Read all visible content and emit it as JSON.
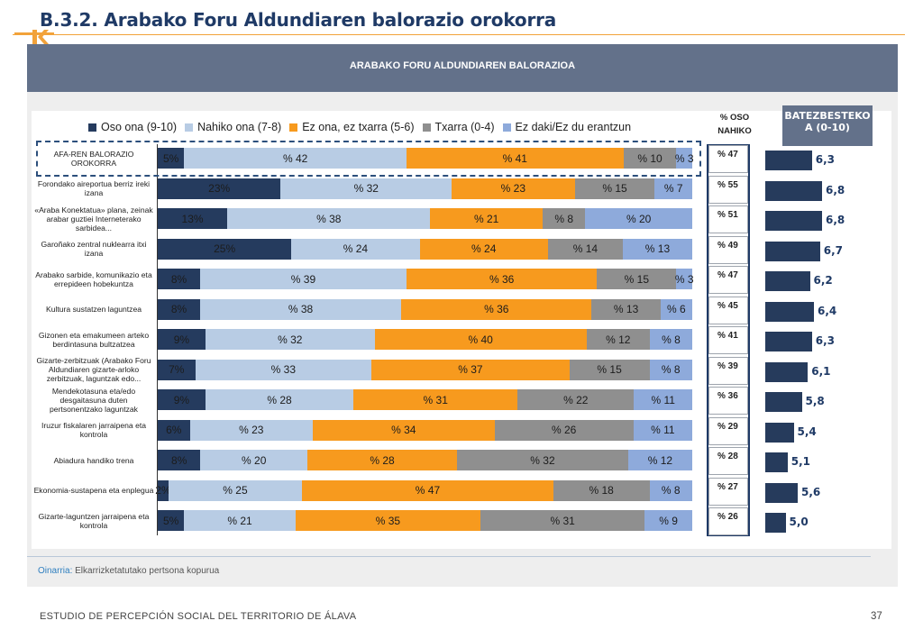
{
  "page": {
    "title": "B.3.2. Arabako Foru Aldundiaren balorazio orokorra",
    "section_header": "ARABAKO FORU ALDUNDIAREN BALORAZIOA",
    "source_label": "Oinarria:",
    "source_text": "Elkarrizketatutako pertsona kopurua",
    "footer": "ESTUDIO DE PERCEPCIÓN SOCIAL DEL TERRITORIO DE ÁLAVA",
    "page_number": "37"
  },
  "colors": {
    "oso_ona": "#253b5e",
    "nahiko_ona": "#b8cce4",
    "ez_ona": "#f79a1e",
    "txarra": "#8f8f8f",
    "ez_daki": "#8eaadb",
    "accent": "#f2a23a",
    "header_band": "#63718a",
    "score_bar": "#263b5c"
  },
  "oso_header": "% OSO\nNAHIKO",
  "batezbesteko_header": "BATEZBESTEKO\nA (0-10)",
  "chart_data": {
    "type": "bar",
    "orientation": "horizontal",
    "stacked": true,
    "categories": [
      "AFA-REN BALORAZIO OROKORRA",
      "Forondako aireportua berriz ireki izana",
      "«Araba Konektatua» plana, zeinak arabar guztiei Interneterako sarbidea...",
      "Garoñako zentral nuklearra itxi izana",
      "Arabako sarbide, komunikazio eta errepideen hobekuntza",
      "Kultura sustatzen laguntzea",
      "Gizonen eta emakumeen arteko berdintasuna bultzatzea",
      "Gizarte-zerbitzuak (Arabako Foru Aldundiaren gizarte-arloko zerbitzuak, laguntzak edo...",
      "Mendekotasuna eta/edo desgaitasuna duten pertsonentzako laguntzak",
      "Iruzur fiskalaren jarraipena eta kontrola",
      "Abiadura handiko trena",
      "Ekonomia-sustapena eta enplegua",
      "Gizarte-laguntzen jarraipena eta kontrola"
    ],
    "series": [
      {
        "name": "Oso ona (9-10)",
        "color": "#253b5e",
        "values": [
          5,
          23,
          13,
          25,
          8,
          8,
          9,
          7,
          9,
          6,
          8,
          2,
          5
        ],
        "labels": [
          "5%",
          "23%",
          "13%",
          "25%",
          "8%",
          "8%",
          "9%",
          "7%",
          "9%",
          "6%",
          "8%",
          "2%",
          "5%"
        ]
      },
      {
        "name": "Nahiko ona (7-8)",
        "color": "#b8cce4",
        "values": [
          42,
          32,
          38,
          24,
          39,
          38,
          32,
          33,
          28,
          23,
          20,
          25,
          21
        ],
        "labels": [
          "% 42",
          "% 32",
          "% 38",
          "% 24",
          "% 39",
          "% 38",
          "% 32",
          "% 33",
          "% 28",
          "% 23",
          "% 20",
          "% 25",
          "% 21"
        ]
      },
      {
        "name": "Ez ona, ez txarra (5-6)",
        "color": "#f79a1e",
        "values": [
          41,
          23,
          21,
          24,
          36,
          36,
          40,
          37,
          31,
          34,
          28,
          47,
          35
        ],
        "labels": [
          "% 41",
          "% 23",
          "% 21",
          "% 24",
          "% 36",
          "% 36",
          "% 40",
          "% 37",
          "% 31",
          "% 34",
          "% 28",
          "% 47",
          "% 35"
        ]
      },
      {
        "name": "Txarra (0-4)",
        "color": "#8f8f8f",
        "values": [
          10,
          15,
          8,
          14,
          15,
          13,
          12,
          15,
          22,
          26,
          32,
          18,
          31
        ],
        "labels": [
          "% 10",
          "% 15",
          "% 8",
          "% 14",
          "% 15",
          "% 13",
          "% 12",
          "% 15",
          "% 22",
          "% 26",
          "% 32",
          "% 18",
          "% 31"
        ]
      },
      {
        "name": "Ez daki/Ez du erantzun",
        "color": "#8eaadb",
        "values": [
          3,
          7,
          20,
          13,
          3,
          6,
          8,
          8,
          11,
          11,
          12,
          8,
          9
        ],
        "labels": [
          "% 3",
          "% 7",
          "% 20",
          "% 13",
          "% 3",
          "% 6",
          "% 8",
          "% 8",
          "% 11",
          "% 11",
          "% 12",
          "% 8",
          "% 9"
        ]
      }
    ],
    "oso_nahiko": [
      "% 47",
      "% 55",
      "% 51",
      "% 49",
      "% 47",
      "% 45",
      "% 41",
      "% 39",
      "% 36",
      "% 29",
      "% 28",
      "% 27",
      "% 26"
    ],
    "batezbestekoa": [
      6.3,
      6.8,
      6.8,
      6.7,
      6.2,
      6.4,
      6.3,
      6.1,
      5.8,
      5.4,
      5.1,
      5.6,
      5.0
    ],
    "batezbestekoa_labels": [
      "6,3",
      "6,8",
      "6,8",
      "6,7",
      "6,2",
      "6,4",
      "6,3",
      "6,1",
      "5,8",
      "5,4",
      "5,1",
      "5,6",
      "5,0"
    ],
    "xlim": [
      0,
      100
    ],
    "score_range": [
      0,
      10
    ],
    "legend": "top"
  }
}
